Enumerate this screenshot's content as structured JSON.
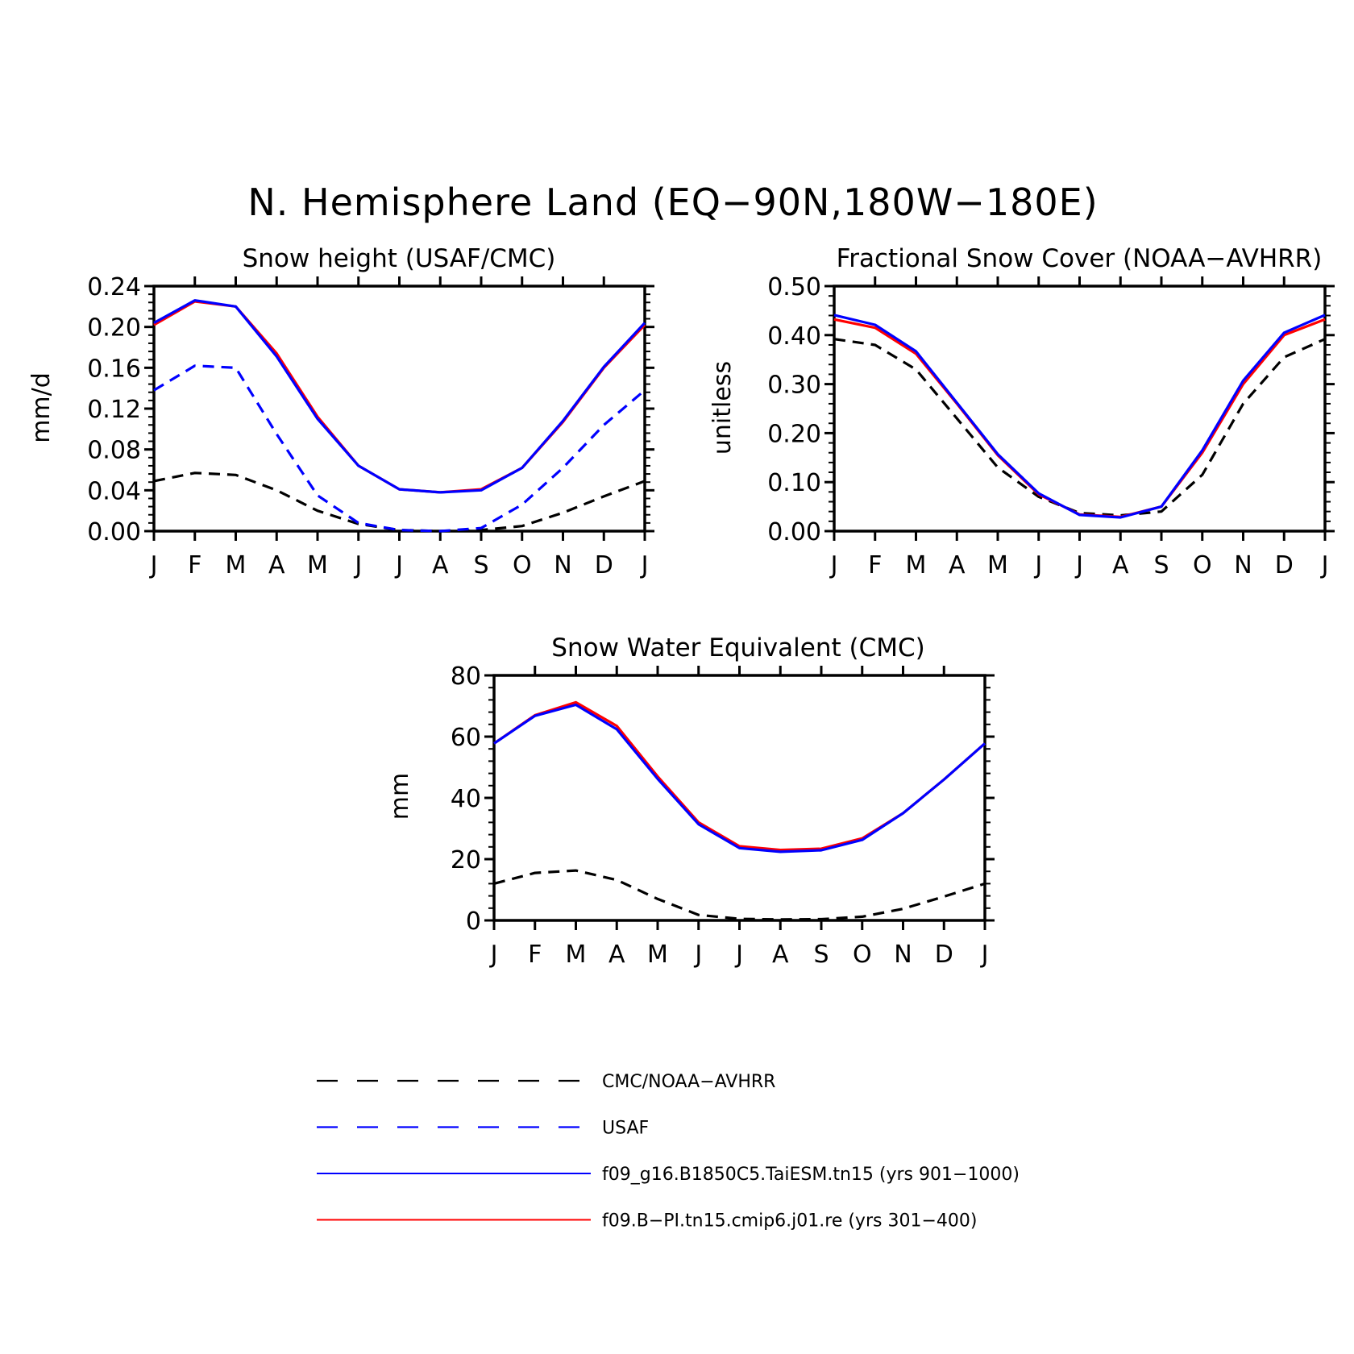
{
  "title": "N. Hemisphere Land (EQ−90N,180W−180E)",
  "colors": {
    "obs": "#000000",
    "usaf": "#0000ff",
    "taiesm": "#0000ff",
    "cmip6": "#ff0000"
  },
  "chart_data": [
    {
      "type": "line",
      "title": "Snow height (USAF/CMC)",
      "ylabel": "mm/d",
      "ylim": [
        0,
        0.24
      ],
      "yticks": [
        "0.00",
        "0.04",
        "0.08",
        "0.12",
        "0.16",
        "0.20",
        "0.24"
      ],
      "categories": [
        "J",
        "F",
        "M",
        "A",
        "M",
        "J",
        "J",
        "A",
        "S",
        "O",
        "N",
        "D",
        "J"
      ],
      "series": [
        {
          "name": "CMC/NOAA−AVHRR",
          "color": "#000000",
          "dashed": true,
          "values": [
            0.049,
            0.057,
            0.055,
            0.04,
            0.02,
            0.007,
            0.001,
            0.0,
            0.001,
            0.005,
            0.018,
            0.034,
            0.049
          ]
        },
        {
          "name": "USAF",
          "color": "#0000ff",
          "dashed": true,
          "values": [
            0.138,
            0.162,
            0.16,
            0.095,
            0.035,
            0.008,
            0.001,
            0.0,
            0.003,
            0.026,
            0.062,
            0.104,
            0.138
          ]
        },
        {
          "name": "f09.B−PI.tn15.cmip6.j01.re (yrs 301−400)",
          "color": "#ff0000",
          "dashed": false,
          "values": [
            0.202,
            0.225,
            0.22,
            0.174,
            0.112,
            0.064,
            0.041,
            0.038,
            0.041,
            0.062,
            0.107,
            0.16,
            0.202
          ]
        },
        {
          "name": "f09_g16.B1850C5.TaiESM.tn15 (yrs 901−1000)",
          "color": "#0000ff",
          "dashed": false,
          "values": [
            0.204,
            0.226,
            0.22,
            0.171,
            0.11,
            0.064,
            0.041,
            0.038,
            0.04,
            0.062,
            0.108,
            0.161,
            0.204
          ]
        }
      ]
    },
    {
      "type": "line",
      "title": "Fractional Snow Cover (NOAA−AVHRR)",
      "ylabel": "unitless",
      "ylim": [
        0,
        0.5
      ],
      "yticks": [
        "0.00",
        "0.10",
        "0.20",
        "0.30",
        "0.40",
        "0.50"
      ],
      "categories": [
        "J",
        "F",
        "M",
        "A",
        "M",
        "J",
        "J",
        "A",
        "S",
        "O",
        "N",
        "D",
        "J"
      ],
      "series": [
        {
          "name": "CMC/NOAA−AVHRR",
          "color": "#000000",
          "dashed": true,
          "values": [
            0.392,
            0.38,
            0.33,
            0.23,
            0.13,
            0.07,
            0.037,
            0.032,
            0.04,
            0.115,
            0.26,
            0.355,
            0.392
          ]
        },
        {
          "name": "f09.B−PI.tn15.cmip6.j01.re (yrs 301−400)",
          "color": "#ff0000",
          "dashed": false,
          "values": [
            0.432,
            0.415,
            0.362,
            0.26,
            0.155,
            0.075,
            0.034,
            0.029,
            0.05,
            0.16,
            0.3,
            0.4,
            0.432
          ]
        },
        {
          "name": "f09_g16.B1850C5.TaiESM.tn15 (yrs 901−1000)",
          "color": "#0000ff",
          "dashed": false,
          "values": [
            0.441,
            0.421,
            0.367,
            0.262,
            0.157,
            0.077,
            0.033,
            0.028,
            0.05,
            0.165,
            0.307,
            0.405,
            0.441
          ]
        }
      ]
    },
    {
      "type": "line",
      "title": "Snow Water Equivalent (CMC)",
      "ylabel": "mm",
      "ylim": [
        0,
        80
      ],
      "yticks": [
        "0",
        "20",
        "40",
        "60",
        "80"
      ],
      "categories": [
        "J",
        "F",
        "M",
        "A",
        "M",
        "J",
        "J",
        "A",
        "S",
        "O",
        "N",
        "D",
        "J"
      ],
      "series": [
        {
          "name": "CMC/NOAA−AVHRR",
          "color": "#000000",
          "dashed": true,
          "values": [
            12.0,
            15.5,
            16.3,
            13.2,
            7.0,
            1.8,
            0.5,
            0.3,
            0.4,
            1.2,
            3.8,
            7.8,
            12.0
          ]
        },
        {
          "name": "f09.B−PI.tn15.cmip6.j01.re (yrs 301−400)",
          "color": "#ff0000",
          "dashed": false,
          "values": [
            57.8,
            67.0,
            71.2,
            63.5,
            47.0,
            32.0,
            24.2,
            23.0,
            23.4,
            26.8,
            35.0,
            46.0,
            57.8
          ]
        },
        {
          "name": "f09_g16.B1850C5.TaiESM.tn15 (yrs 901−1000)",
          "color": "#0000ff",
          "dashed": false,
          "values": [
            57.8,
            66.8,
            70.4,
            62.4,
            46.2,
            31.4,
            23.6,
            22.4,
            22.9,
            26.3,
            35.0,
            46.0,
            57.8
          ]
        }
      ]
    }
  ],
  "legend": [
    {
      "label": "CMC/NOAA−AVHRR",
      "color": "#000000",
      "dashed": true
    },
    {
      "label": "USAF",
      "color": "#0000ff",
      "dashed": true
    },
    {
      "label": "f09_g16.B1850C5.TaiESM.tn15 (yrs 901−1000)",
      "color": "#0000ff",
      "dashed": false
    },
    {
      "label": "f09.B−PI.tn15.cmip6.j01.re (yrs 301−400)",
      "color": "#ff0000",
      "dashed": false
    }
  ]
}
